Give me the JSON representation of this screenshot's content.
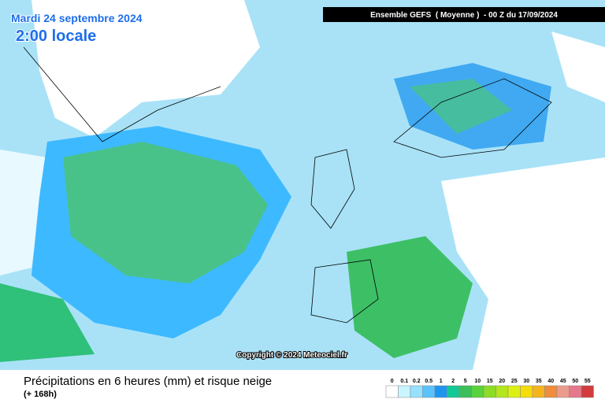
{
  "header": {
    "date": "Mardi 24 septembre 2024",
    "time": "2:00 locale",
    "model": "Ensemble GEFS  ( Moyenne )  - 00 Z du 17/09/2024"
  },
  "copyright": "Copyright © 2024 Meteociel.fr",
  "footer": {
    "title": "Précipitations en 6 heures (mm) et risque neige",
    "subtitle": "(+ 168h)"
  },
  "legend": {
    "labels": [
      0,
      0.1,
      0.2,
      0.5,
      1,
      2,
      5,
      10,
      15,
      20,
      25,
      30,
      35,
      40,
      45,
      50,
      55
    ],
    "colors": [
      "#ffffff",
      "#c8f5ff",
      "#96e1ff",
      "#5ac3ff",
      "#1e96f0",
      "#14c896",
      "#3cbe5a",
      "#5ad23c",
      "#8cdc28",
      "#b4e61e",
      "#dcf014",
      "#f5dc0a",
      "#f5b41e",
      "#f08c3c",
      "#eb9b8c",
      "#e6788c",
      "#d23c3c"
    ]
  }
}
